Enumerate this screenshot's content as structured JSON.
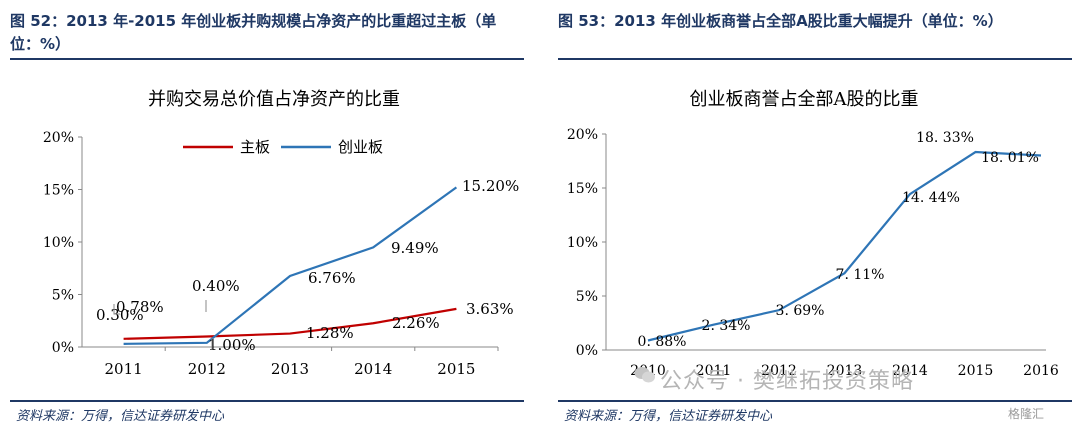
{
  "left": {
    "figure_title": "图 52：2013 年-2015 年创业板并购规模占净资产的比重超过主板（单位：%）",
    "source": "资料来源：万得，信达证券研发中心"
  },
  "right": {
    "figure_title": "图 53：2013 年创业板商誉占全部A股比重大幅提升（单位：%）",
    "source": "资料来源：万得，信达证券研发中心"
  },
  "watermark": "公众号 · 樊继拓投资策略",
  "brand": "格隆汇",
  "chart_data": [
    {
      "type": "line",
      "title": "并购交易总价值占净资产的比重",
      "categories": [
        "2011",
        "2012",
        "2013",
        "2014",
        "2015"
      ],
      "ylim": [
        0,
        20
      ],
      "yticks": [
        "0%",
        "5%",
        "10%",
        "15%",
        "20%"
      ],
      "grid": false,
      "legend": "top-center",
      "colors": {
        "main": "#c00000",
        "gem": "#2e75b6"
      },
      "series": [
        {
          "name": "主板",
          "values": [
            0.78,
            1.0,
            1.28,
            2.26,
            3.63
          ],
          "labels": [
            "0.78%",
            "1.00%",
            "1.28%",
            "2.26%",
            "3.63%"
          ]
        },
        {
          "name": "创业板",
          "values": [
            0.3,
            0.4,
            6.76,
            9.49,
            15.2
          ],
          "labels": [
            "0.30%",
            "0.40%",
            "6.76%",
            "9.49%",
            "15.20%"
          ]
        }
      ]
    },
    {
      "type": "line",
      "title": "创业板商誉占全部A股的比重",
      "categories": [
        "2010",
        "2011",
        "2012",
        "2013",
        "2014",
        "2015",
        "2016"
      ],
      "ylim": [
        0,
        20
      ],
      "yticks": [
        "0%",
        "5%",
        "10%",
        "15%",
        "20%"
      ],
      "grid": false,
      "color": "#2e75b6",
      "series": [
        {
          "values": [
            0.88,
            2.34,
            3.69,
            7.11,
            14.44,
            18.33,
            18.01
          ],
          "labels": [
            "0. 88%",
            "2. 34%",
            "3. 69%",
            "7. 11%",
            "14. 44%",
            "18. 33%",
            "18. 01%"
          ]
        }
      ]
    }
  ]
}
